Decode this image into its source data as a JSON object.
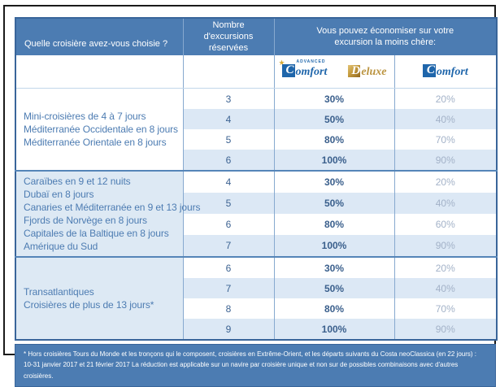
{
  "header": {
    "col_cruise": "Quelle croisière avez-vous choisie ?",
    "col_excursions": "Nombre d'excursions réservées",
    "col_savings": "Vous pouvez économiser sur votre excursion la moins chère:"
  },
  "brands": {
    "star_icon": "★",
    "advanced_label": "ADVANCED",
    "comfort_initial": "C",
    "comfort_rest": "omfort",
    "deluxe_initial": "D",
    "deluxe_rest": "eluxe"
  },
  "groups": [
    {
      "cruises": [
        "Mini-croisières de 4 à 7 jours",
        "Méditerranée Occidentale en 8 jours",
        "Méditerranée Orientale en 8 jours"
      ],
      "rows": [
        {
          "excursions": "3",
          "advanced_deluxe": "30%",
          "comfort": "20%"
        },
        {
          "excursions": "4",
          "advanced_deluxe": "50%",
          "comfort": "40%"
        },
        {
          "excursions": "5",
          "advanced_deluxe": "80%",
          "comfort": "70%"
        },
        {
          "excursions": "6",
          "advanced_deluxe": "100%",
          "comfort": "90%"
        }
      ]
    },
    {
      "cruises": [
        "Caraïbes en 9 et 12 nuits",
        "Dubaï en 8 jours",
        "Canaries et Méditerranée en 9 et 13 jours",
        "Fjords de Norvège en 8 jours",
        "Capitales de la Baltique en 8 jours",
        "Amérique du Sud"
      ],
      "rows": [
        {
          "excursions": "4",
          "advanced_deluxe": "30%",
          "comfort": "20%"
        },
        {
          "excursions": "5",
          "advanced_deluxe": "50%",
          "comfort": "40%"
        },
        {
          "excursions": "6",
          "advanced_deluxe": "80%",
          "comfort": "60%"
        },
        {
          "excursions": "7",
          "advanced_deluxe": "100%",
          "comfort": "90%"
        }
      ]
    },
    {
      "cruises": [
        "Transatlantiques",
        "Croisières de plus de 13 jours*"
      ],
      "rows": [
        {
          "excursions": "6",
          "advanced_deluxe": "30%",
          "comfort": "20%"
        },
        {
          "excursions": "7",
          "advanced_deluxe": "50%",
          "comfort": "40%"
        },
        {
          "excursions": "8",
          "advanced_deluxe": "80%",
          "comfort": "70%"
        },
        {
          "excursions": "9",
          "advanced_deluxe": "100%",
          "comfort": "90%"
        }
      ]
    }
  ],
  "footnote": "* Hors croisières Tours du Monde et les tronçons qui le composent, croisières en Extrême-Orient, et les départs suivants du Costa neoClassica (en 22 jours) : 10-31 janvier 2017 et 21 février 2017 La réduction est applicable sur un navire par croisière unique et non sur de possibles combinaisons avec d'autres croisières.",
  "colors": {
    "header_blue": "#4c7cb2",
    "row_light_blue": "#dce8f5",
    "logo_blue": "#1f66ab",
    "logo_gold": "#bb9440",
    "pct_dark": "#3a5f8c",
    "pct_light": "#a3b2c8",
    "frame_black": "#1b1b1b"
  }
}
